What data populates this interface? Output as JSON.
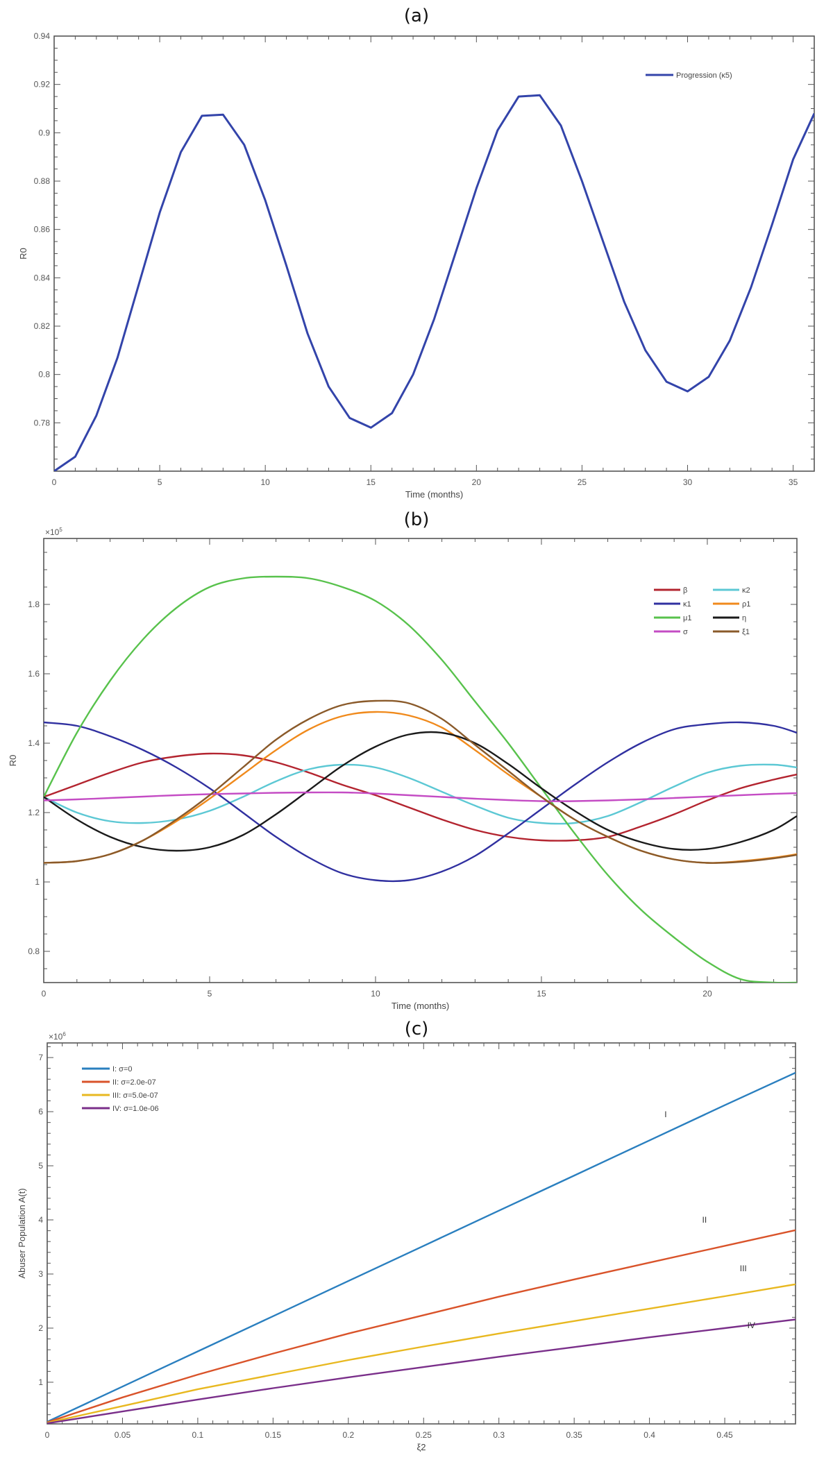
{
  "panels": {
    "a_label": "(a)",
    "b_label": "(b)",
    "c_label": "(c)"
  },
  "chart_data": [
    {
      "id": "a",
      "type": "line",
      "title": "(a)",
      "xlabel": "Time (months)",
      "ylabel": "R0",
      "xlim": [
        0,
        36
      ],
      "ylim": [
        0.76,
        0.94
      ],
      "xticks": [
        0,
        5,
        10,
        15,
        20,
        25,
        30,
        35
      ],
      "yticks": [
        0.78,
        0.8,
        0.82,
        0.84,
        0.86,
        0.88,
        0.9,
        0.92,
        0.94
      ],
      "ytick_labels": [
        "0.78",
        "0.8",
        "0.82",
        "0.84",
        "0.86",
        "0.88",
        "0.9",
        "0.92",
        "0.94"
      ],
      "grid": false,
      "legend_position": "upper right",
      "x": [
        0,
        1,
        2,
        3,
        4,
        5,
        6,
        7,
        8,
        9,
        10,
        11,
        12,
        13,
        14,
        15,
        16,
        17,
        18,
        19,
        20,
        21,
        22,
        23,
        24,
        25,
        26,
        27,
        28,
        29,
        30,
        31,
        32,
        33,
        34,
        35,
        36
      ],
      "series": [
        {
          "name": "Progression (κ5)",
          "color": "#3344aa",
          "values": [
            0.76,
            0.766,
            0.783,
            0.807,
            0.837,
            0.867,
            0.892,
            0.907,
            0.9075,
            0.895,
            0.872,
            0.845,
            0.817,
            0.795,
            0.782,
            0.778,
            0.784,
            0.8,
            0.823,
            0.85,
            0.877,
            0.901,
            0.915,
            0.9155,
            0.903,
            0.88,
            0.855,
            0.83,
            0.81,
            0.797,
            0.793,
            0.799,
            0.814,
            0.836,
            0.862,
            0.889,
            0.908
          ]
        }
      ]
    },
    {
      "id": "b",
      "type": "line",
      "title": "(b)",
      "xlabel": "Time (months)",
      "ylabel": "R0",
      "y_multiplier": "×10^5",
      "xlim": [
        0,
        22.7
      ],
      "ylim": [
        0.71,
        1.99
      ],
      "xticks": [
        0,
        5,
        10,
        15,
        20
      ],
      "yticks": [
        0.8,
        1,
        1.2,
        1.4,
        1.6,
        1.8
      ],
      "ytick_labels": [
        "0.8",
        "1",
        "1.2",
        "1.4",
        "1.6",
        "1.8"
      ],
      "grid": false,
      "legend_position": "upper right",
      "x": [
        0,
        1,
        2,
        3,
        4,
        5,
        6,
        7,
        8,
        9,
        10,
        11,
        12,
        13,
        14,
        15,
        16,
        17,
        18,
        19,
        20,
        21,
        22,
        22.7
      ],
      "series": [
        {
          "name": "β",
          "color": "#b3242f",
          "values": [
            1.245,
            1.28,
            1.315,
            1.345,
            1.362,
            1.37,
            1.365,
            1.345,
            1.315,
            1.28,
            1.25,
            1.215,
            1.18,
            1.15,
            1.13,
            1.12,
            1.12,
            1.13,
            1.16,
            1.195,
            1.235,
            1.27,
            1.295,
            1.31
          ]
        },
        {
          "name": "κ2",
          "color": "#5cc8d4",
          "values": [
            1.245,
            1.2,
            1.175,
            1.17,
            1.18,
            1.205,
            1.245,
            1.29,
            1.325,
            1.338,
            1.33,
            1.3,
            1.26,
            1.22,
            1.185,
            1.17,
            1.17,
            1.19,
            1.23,
            1.275,
            1.315,
            1.335,
            1.338,
            1.33
          ]
        },
        {
          "name": "κ1",
          "color": "#3030a0",
          "values": [
            1.46,
            1.45,
            1.42,
            1.38,
            1.33,
            1.27,
            1.2,
            1.13,
            1.07,
            1.025,
            1.005,
            1.005,
            1.03,
            1.075,
            1.14,
            1.21,
            1.28,
            1.345,
            1.4,
            1.44,
            1.455,
            1.46,
            1.45,
            1.43
          ]
        },
        {
          "name": "ρ1",
          "color": "#f08a1c",
          "values": [
            1.055,
            1.06,
            1.08,
            1.12,
            1.175,
            1.24,
            1.31,
            1.38,
            1.44,
            1.478,
            1.49,
            1.48,
            1.445,
            1.38,
            1.31,
            1.245,
            1.18,
            1.13,
            1.09,
            1.065,
            1.055,
            1.06,
            1.07,
            1.08
          ]
        },
        {
          "name": "μ1",
          "color": "#58c24c",
          "values": [
            1.245,
            1.43,
            1.58,
            1.7,
            1.79,
            1.85,
            1.875,
            1.88,
            1.875,
            1.85,
            1.81,
            1.74,
            1.64,
            1.52,
            1.4,
            1.27,
            1.14,
            1.02,
            0.92,
            0.84,
            0.77,
            0.72,
            0.71,
            0.71
          ]
        },
        {
          "name": "η",
          "color": "#1a1a1a",
          "values": [
            1.245,
            1.18,
            1.13,
            1.1,
            1.09,
            1.1,
            1.135,
            1.195,
            1.265,
            1.335,
            1.39,
            1.425,
            1.43,
            1.4,
            1.34,
            1.27,
            1.205,
            1.15,
            1.115,
            1.095,
            1.095,
            1.115,
            1.15,
            1.19
          ]
        },
        {
          "name": "σ",
          "color": "#c44cc4",
          "values": [
            1.235,
            1.238,
            1.242,
            1.246,
            1.25,
            1.253,
            1.255,
            1.257,
            1.258,
            1.258,
            1.255,
            1.25,
            1.245,
            1.24,
            1.236,
            1.233,
            1.233,
            1.235,
            1.238,
            1.242,
            1.246,
            1.25,
            1.254,
            1.256
          ]
        },
        {
          "name": "ξ1",
          "color": "#8a5a2a",
          "values": [
            1.055,
            1.06,
            1.08,
            1.12,
            1.18,
            1.25,
            1.33,
            1.41,
            1.47,
            1.51,
            1.522,
            1.515,
            1.47,
            1.395,
            1.32,
            1.245,
            1.18,
            1.13,
            1.09,
            1.065,
            1.055,
            1.058,
            1.068,
            1.078
          ]
        }
      ]
    },
    {
      "id": "c",
      "type": "line",
      "title": "(c)",
      "xlabel": "ξ2",
      "ylabel": "Abuser Population A(t)",
      "y_multiplier": "×10^6",
      "xlim": [
        0,
        0.497
      ],
      "ylim": [
        0.23,
        7.27
      ],
      "xticks": [
        0,
        0.05,
        0.1,
        0.15,
        0.2,
        0.25,
        0.3,
        0.35,
        0.4,
        0.45
      ],
      "xtick_labels": [
        "0",
        "0.05",
        "0.1",
        "0.15",
        "0.2",
        "0.25",
        "0.3",
        "0.35",
        "0.4",
        "0.45"
      ],
      "yticks": [
        1,
        2,
        3,
        4,
        5,
        6,
        7
      ],
      "ytick_labels": [
        "1",
        "2",
        "3",
        "4",
        "5",
        "6",
        "7"
      ],
      "grid": false,
      "legend_position": "upper left",
      "x": [
        0,
        0.05,
        0.1,
        0.15,
        0.2,
        0.25,
        0.3,
        0.35,
        0.4,
        0.45,
        0.497
      ],
      "series": [
        {
          "name": "I: σ=0",
          "annotation": "I",
          "color": "#2a7fbf",
          "values": [
            0.27,
            0.92,
            1.57,
            2.22,
            2.87,
            3.52,
            4.17,
            4.82,
            5.47,
            6.12,
            6.72
          ]
        },
        {
          "name": "II: σ=2.0e-07",
          "annotation": "II",
          "color": "#d9532a",
          "values": [
            0.26,
            0.72,
            1.14,
            1.53,
            1.9,
            2.24,
            2.58,
            2.9,
            3.21,
            3.52,
            3.81
          ]
        },
        {
          "name": "III: σ=5.0e-07",
          "annotation": "III",
          "color": "#e8b820",
          "values": [
            0.25,
            0.56,
            0.87,
            1.14,
            1.41,
            1.66,
            1.9,
            2.13,
            2.36,
            2.59,
            2.81
          ]
        },
        {
          "name": "IV: σ=1.0e-06",
          "annotation": "IV",
          "color": "#7a2f8a",
          "values": [
            0.24,
            0.46,
            0.68,
            0.89,
            1.09,
            1.28,
            1.47,
            1.65,
            1.83,
            2.0,
            2.16
          ]
        }
      ]
    }
  ]
}
